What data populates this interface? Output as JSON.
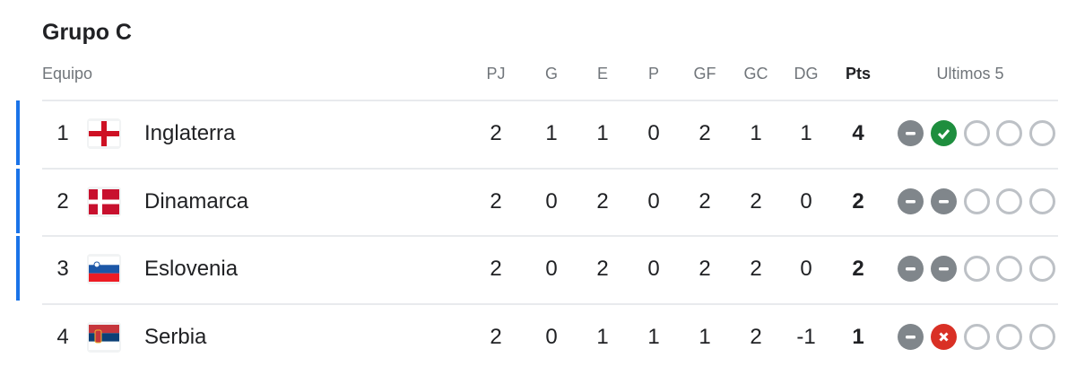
{
  "title": "Grupo C",
  "headers": {
    "team": "Equipo",
    "pj": "PJ",
    "g": "G",
    "e": "E",
    "p": "P",
    "gf": "GF",
    "gc": "GC",
    "dg": "DG",
    "pts": "Pts",
    "last5": "Ultimos 5"
  },
  "colors": {
    "qualify_bar": "#1a73e8",
    "win": "#1e8e3e",
    "draw": "#80868b",
    "loss": "#d93025"
  },
  "rows": [
    {
      "rank": "1",
      "team": "Inglaterra",
      "flag": "england-flag-icon",
      "qualified": true,
      "pj": "2",
      "g": "1",
      "e": "1",
      "p": "0",
      "gf": "2",
      "gc": "1",
      "dg": "1",
      "pts": "4",
      "form": [
        "D",
        "W",
        "",
        "",
        ""
      ]
    },
    {
      "rank": "2",
      "team": "Dinamarca",
      "flag": "denmark-flag-icon",
      "qualified": true,
      "pj": "2",
      "g": "0",
      "e": "2",
      "p": "0",
      "gf": "2",
      "gc": "2",
      "dg": "0",
      "pts": "2",
      "form": [
        "D",
        "D",
        "",
        "",
        ""
      ]
    },
    {
      "rank": "3",
      "team": "Eslovenia",
      "flag": "slovenia-flag-icon",
      "qualified": true,
      "pj": "2",
      "g": "0",
      "e": "2",
      "p": "0",
      "gf": "2",
      "gc": "2",
      "dg": "0",
      "pts": "2",
      "form": [
        "D",
        "D",
        "",
        "",
        ""
      ]
    },
    {
      "rank": "4",
      "team": "Serbia",
      "flag": "serbia-flag-icon",
      "qualified": false,
      "pj": "2",
      "g": "0",
      "e": "1",
      "p": "1",
      "gf": "1",
      "gc": "2",
      "dg": "-1",
      "pts": "1",
      "form": [
        "D",
        "L",
        "",
        "",
        ""
      ]
    }
  ]
}
